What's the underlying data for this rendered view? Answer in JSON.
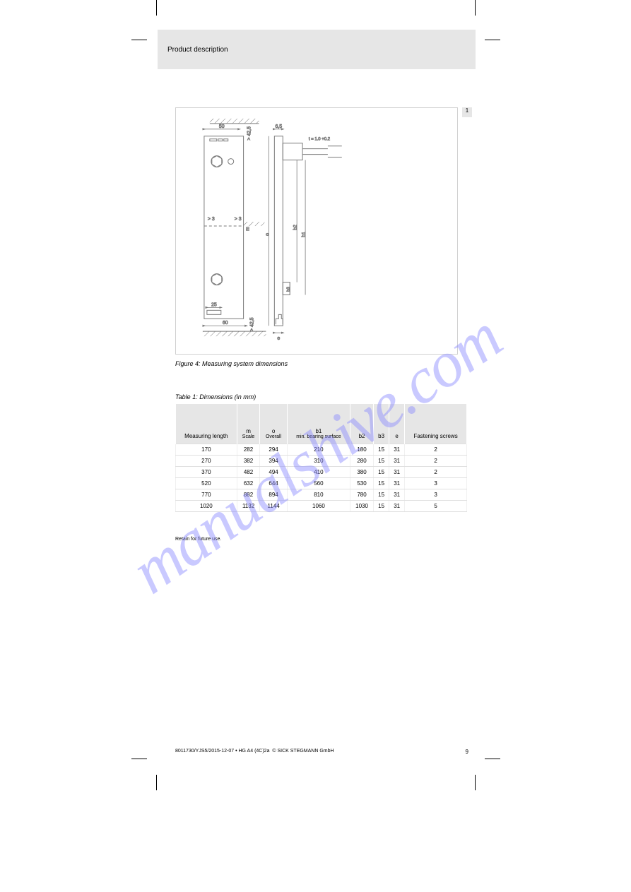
{
  "page": {
    "number": "9"
  },
  "header": {
    "title": "Product description"
  },
  "side_tab": "1",
  "figure": {
    "caption": "Figure 4: Measuring system dimensions",
    "dims": {
      "top_width_left": "50",
      "top_clear": "> 42,5",
      "top_gap": "6,5",
      "conn_spec": "t = 1.0 +0.2",
      "left_clear": "> 3",
      "right_clear": "> 3",
      "m": "m",
      "o": "o",
      "b1": "b1",
      "b2": "b2",
      "b3": "b3",
      "bottom_inner": "25",
      "bottom_width": "60",
      "bottom_clear": "> 42,5",
      "e": "e"
    },
    "colors": {
      "stroke": "#7a7a7a",
      "dim_stroke": "#7a7a7a",
      "hatch": "#7a7a7a",
      "text": "#555555"
    }
  },
  "table": {
    "caption": "Table 1: Dimensions (in mm)",
    "headers": [
      {
        "main": "Measuring length",
        "sub": ""
      },
      {
        "main": "m",
        "sub": "Scale"
      },
      {
        "main": "o",
        "sub": "Overall"
      },
      {
        "main": "b1",
        "sub": "min. bearing surface"
      },
      {
        "main": "b2",
        "sub": ""
      },
      {
        "main": "b3",
        "sub": ""
      },
      {
        "main": "e",
        "sub": ""
      },
      {
        "main": "Fastening screws",
        "sub": ""
      }
    ],
    "rows": [
      [
        "170",
        "282",
        "294",
        "210",
        "180",
        "15",
        "31",
        "2"
      ],
      [
        "270",
        "382",
        "394",
        "310",
        "280",
        "15",
        "31",
        "2"
      ],
      [
        "370",
        "482",
        "494",
        "410",
        "380",
        "15",
        "31",
        "2"
      ],
      [
        "520",
        "632",
        "644",
        "560",
        "530",
        "15",
        "31",
        "3"
      ],
      [
        "770",
        "882",
        "894",
        "810",
        "780",
        "15",
        "31",
        "3"
      ],
      [
        "1020",
        "1132",
        "1144",
        "1060",
        "1030",
        "15",
        "31",
        "5"
      ]
    ]
  },
  "footer": {
    "retain": "Retain for future use.",
    "doc_id": "8011730/YJS5/2015-12-07 • HG A4 (4C)2a",
    "copyright": "© SICK STEGMANN GmbH"
  },
  "watermark": "manualshive.com"
}
